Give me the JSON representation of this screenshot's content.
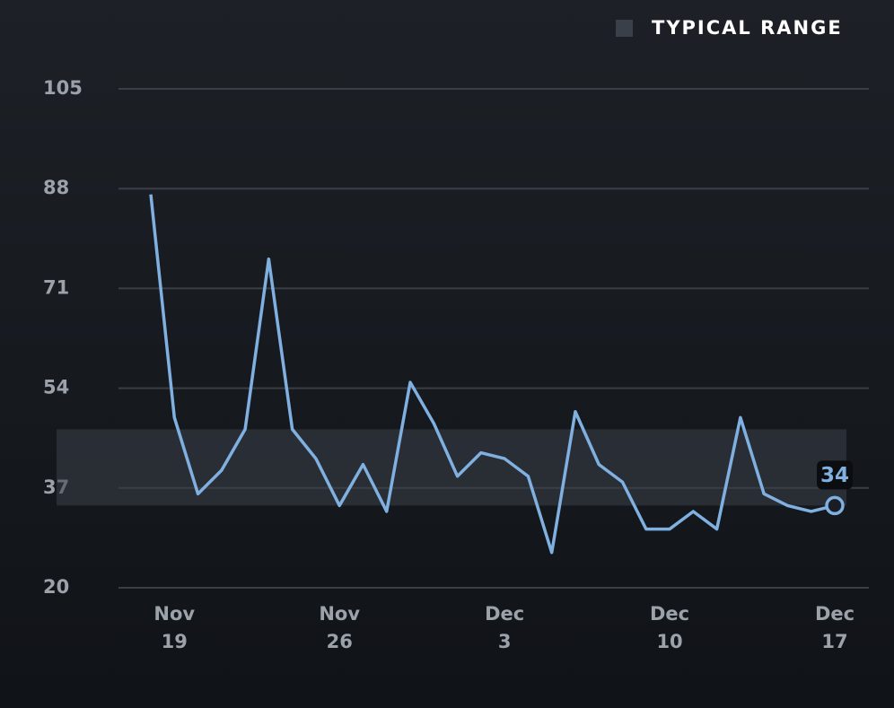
{
  "chart_data": {
    "type": "line",
    "categories": [
      null,
      "Nov 19",
      null,
      null,
      null,
      null,
      null,
      null,
      "Nov 26",
      null,
      null,
      null,
      null,
      null,
      null,
      "Dec 3",
      null,
      null,
      null,
      null,
      null,
      null,
      "Dec 10",
      null,
      null,
      null,
      null,
      null,
      null,
      "Dec 17"
    ],
    "values": [
      87,
      49,
      36,
      40,
      47,
      76,
      47,
      42,
      34,
      41,
      33,
      55,
      48,
      39,
      43,
      42,
      39,
      26,
      50,
      41,
      38,
      30,
      30,
      33,
      30,
      49,
      36,
      34,
      33,
      34
    ],
    "color": "#7fb0e0",
    "ylim": [
      20,
      105
    ],
    "yticks": [
      20,
      37,
      54,
      71,
      88,
      105
    ],
    "grid": true,
    "typical_range": {
      "name": "TYPICAL RANGE",
      "low": 34,
      "high": 47,
      "color": "#3a4049"
    }
  }
}
